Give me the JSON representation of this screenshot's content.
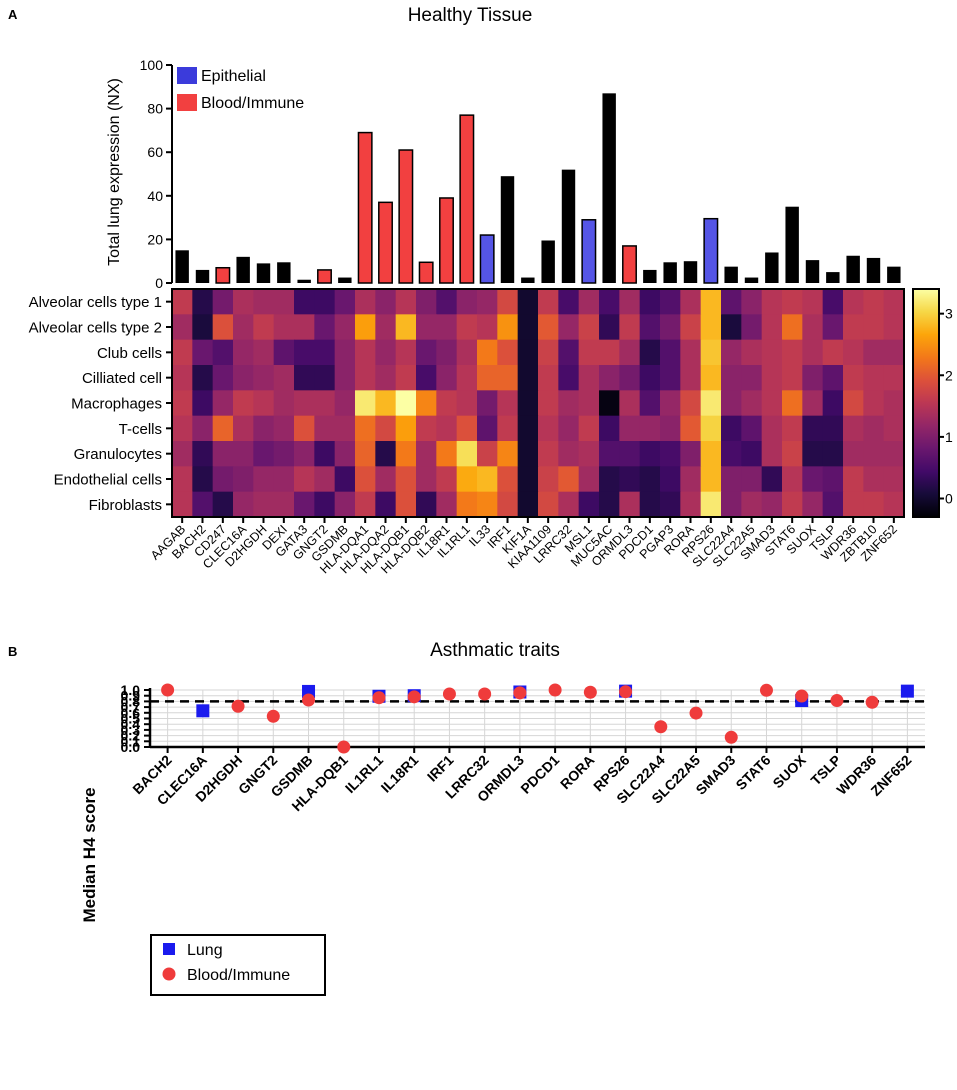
{
  "panel_a": {
    "letter": "A",
    "title": "Healthy Tissue",
    "ylabel": "Total lung expression (NX)",
    "legend": [
      {
        "label": "Epithelial",
        "color": "#3b3bdb"
      },
      {
        "label": "Blood/Immune",
        "color": "#f24040"
      }
    ],
    "colorbar_ticks": [
      "0",
      "1",
      "2",
      "3"
    ]
  },
  "panel_b": {
    "letter": "B",
    "title": "Asthmatic traits",
    "ylabel": "Median H4 score",
    "legend": [
      {
        "label": "Lung",
        "color": "#1a1aee"
      },
      {
        "label": "Blood/Immune",
        "color": "#ef3b3b"
      }
    ]
  },
  "chart_data": [
    {
      "type": "bar",
      "title": "Healthy Tissue",
      "ylabel": "Total lung expression (NX)",
      "ylim": [
        0,
        100
      ],
      "yticks": [
        0,
        20,
        40,
        60,
        80,
        100
      ],
      "categories": [
        "AAGAB",
        "BACH2",
        "CD247",
        "CLEC16A",
        "D2HGDH",
        "DEXI",
        "GATA3",
        "GNGT2",
        "GSDMB",
        "HLA-DQA1",
        "HLA-DQA2",
        "HLA-DQB1",
        "HLA-DQB2",
        "IL18R1",
        "IL1RL1",
        "IL33",
        "IRF1",
        "KIF1A",
        "KIAA1109",
        "LRRC32",
        "MSL1",
        "MUC5AC",
        "ORMDL3",
        "PDCD1",
        "PGAP3",
        "RORA",
        "RPS26",
        "SLC22A4",
        "SLC22A5",
        "SMAD3",
        "STAT6",
        "SUOX",
        "TSLP",
        "WDR36",
        "ZBTB10",
        "ZNF652"
      ],
      "values": [
        15,
        6,
        7,
        12,
        9,
        9.5,
        1.5,
        6,
        2.5,
        69,
        37,
        61,
        9.5,
        39,
        77,
        22,
        49,
        2.5,
        19.5,
        52,
        29,
        87,
        17,
        6,
        9.5,
        10,
        29.5,
        7.5,
        2.5,
        14,
        35,
        10.5,
        5,
        12.5,
        11.5,
        7.5
      ],
      "bar_group": [
        "other",
        "other",
        "blood",
        "other",
        "other",
        "other",
        "other",
        "blood",
        "other",
        "blood",
        "blood",
        "blood",
        "blood",
        "blood",
        "blood",
        "epithelial",
        "other",
        "other",
        "other",
        "other",
        "epithelial",
        "other",
        "blood",
        "other",
        "other",
        "other",
        "epithelial",
        "other",
        "other",
        "other",
        "other",
        "other",
        "other",
        "other",
        "other",
        "other"
      ],
      "group_colors": {
        "other": "#000000",
        "blood": "#f24040",
        "epithelial": "#5555e6"
      }
    },
    {
      "type": "heatmap",
      "rows": [
        "Alveolar cells type 1",
        "Alveolar cells type 2",
        "Club cells",
        "Cilliated cell",
        "Macrophages",
        "T-cells",
        "Granulocytes",
        "Endothelial cells",
        "Fibroblasts"
      ],
      "columns": [
        "AAGAB",
        "BACH2",
        "CD247",
        "CLEC16A",
        "D2HGDH",
        "DEXI",
        "GATA3",
        "GNGT2",
        "GSDMB",
        "HLA-DQA1",
        "HLA-DQA2",
        "HLA-DQB1",
        "HLA-DQB2",
        "IL18R1",
        "IL1RL1",
        "IL33",
        "IRF1",
        "KIF1A",
        "KIAA1109",
        "LRRC32",
        "MSL1",
        "MUC5AC",
        "ORMDL3",
        "PDCD1",
        "PGAP3",
        "RORA",
        "RPS26",
        "SLC22A4",
        "SLC22A5",
        "SMAD3",
        "STAT6",
        "SUOX",
        "TSLP",
        "WDR36",
        "ZBTB10",
        "ZNF652"
      ],
      "values": [
        [
          1.6,
          0.2,
          0.9,
          1.4,
          1.3,
          1.3,
          0.4,
          0.4,
          0.8,
          1.4,
          1.1,
          1.5,
          1.0,
          0.6,
          1.1,
          1.2,
          1.8,
          0.0,
          1.6,
          0.5,
          1.3,
          0.5,
          1.3,
          0.4,
          0.6,
          1.4,
          2.8,
          0.7,
          1.1,
          1.5,
          1.6,
          1.5,
          0.5,
          1.5,
          1.6,
          1.5
        ],
        [
          1.3,
          0.1,
          1.9,
          1.3,
          1.6,
          1.4,
          1.4,
          0.8,
          1.2,
          2.6,
          1.3,
          2.8,
          1.2,
          1.2,
          1.6,
          1.5,
          2.5,
          0.0,
          2.0,
          1.2,
          1.7,
          0.3,
          1.6,
          0.6,
          0.9,
          1.7,
          2.8,
          0.1,
          0.9,
          1.5,
          2.2,
          1.4,
          0.8,
          1.6,
          1.6,
          1.5
        ],
        [
          1.6,
          0.8,
          0.6,
          1.2,
          1.3,
          0.7,
          0.5,
          0.5,
          1.1,
          1.5,
          1.2,
          1.5,
          0.8,
          1.0,
          1.4,
          2.3,
          1.9,
          0.0,
          1.7,
          0.6,
          1.6,
          1.6,
          1.3,
          0.2,
          0.6,
          1.4,
          2.9,
          1.2,
          1.4,
          1.5,
          1.6,
          1.4,
          1.6,
          1.5,
          1.3,
          1.3
        ],
        [
          1.5,
          0.2,
          0.8,
          1.1,
          1.2,
          1.3,
          0.3,
          0.3,
          1.1,
          1.5,
          1.3,
          1.6,
          0.5,
          1.1,
          1.5,
          2.1,
          2.1,
          0.0,
          1.6,
          0.5,
          1.4,
          1.1,
          0.9,
          0.4,
          0.6,
          1.4,
          2.8,
          1.1,
          1.1,
          1.5,
          1.6,
          1.0,
          0.7,
          1.6,
          1.5,
          1.5
        ],
        [
          1.6,
          0.4,
          1.2,
          1.6,
          1.5,
          1.3,
          1.4,
          1.4,
          1.2,
          3.2,
          2.8,
          3.4,
          2.4,
          1.6,
          1.5,
          0.9,
          1.5,
          0.0,
          1.6,
          1.3,
          1.4,
          -0.2,
          1.4,
          0.6,
          1.2,
          1.8,
          3.2,
          1.1,
          1.3,
          1.5,
          2.2,
          1.3,
          0.4,
          1.8,
          1.5,
          1.4
        ],
        [
          1.5,
          1.1,
          2.1,
          1.4,
          1.1,
          1.2,
          1.9,
          1.3,
          1.3,
          2.2,
          1.8,
          2.6,
          1.6,
          1.5,
          1.9,
          0.7,
          1.6,
          0.0,
          1.5,
          1.2,
          1.6,
          0.4,
          1.2,
          1.2,
          1.1,
          2.0,
          3.0,
          0.4,
          0.7,
          1.4,
          1.6,
          0.3,
          0.3,
          1.4,
          1.3,
          1.4
        ],
        [
          1.3,
          0.3,
          1.1,
          1.1,
          0.8,
          0.9,
          1.1,
          0.4,
          1.1,
          2.1,
          0.2,
          2.3,
          1.3,
          2.3,
          3.1,
          1.7,
          2.4,
          0.0,
          1.6,
          1.3,
          1.4,
          0.6,
          0.6,
          0.4,
          0.5,
          1.0,
          2.8,
          0.5,
          0.4,
          1.4,
          1.7,
          0.2,
          0.2,
          1.3,
          1.3,
          1.3
        ],
        [
          1.5,
          0.2,
          0.9,
          1.0,
          1.2,
          1.2,
          1.5,
          1.3,
          0.4,
          1.9,
          1.3,
          1.9,
          1.3,
          1.6,
          2.7,
          2.8,
          1.9,
          0.0,
          1.7,
          2.0,
          1.3,
          0.2,
          0.3,
          0.2,
          0.4,
          1.3,
          2.8,
          1.0,
          1.0,
          0.3,
          1.5,
          0.8,
          0.7,
          1.6,
          1.4,
          1.4
        ],
        [
          1.5,
          0.6,
          0.2,
          1.2,
          1.3,
          1.3,
          0.8,
          0.4,
          1.1,
          1.6,
          0.4,
          1.9,
          0.3,
          1.3,
          2.3,
          2.4,
          1.8,
          0.0,
          1.8,
          1.4,
          0.4,
          0.2,
          1.4,
          0.2,
          0.3,
          1.4,
          3.2,
          1.0,
          1.3,
          1.2,
          1.6,
          1.2,
          0.6,
          1.6,
          1.6,
          1.5
        ]
      ],
      "colorbar_ticks": [
        0,
        1,
        2,
        3
      ],
      "vmin": -0.3,
      "vmax": 3.4
    },
    {
      "type": "scatter",
      "title": "Asthmatic traits",
      "ylabel": "Median H4 score",
      "ylim": [
        0.0,
        1.0
      ],
      "yticks": [
        0.0,
        0.1,
        0.2,
        0.3,
        0.4,
        0.5,
        0.6,
        0.7,
        0.8,
        0.9,
        1.0
      ],
      "threshold": 0.8,
      "categories": [
        "BACH2",
        "CLEC16A",
        "D2HGDH",
        "GNGT2",
        "GSDMB",
        "HLA-DQB1",
        "IL1RL1",
        "IL18R1",
        "IRF1",
        "LRRC32",
        "ORMDL3",
        "PDCD1",
        "RORA",
        "RPS26",
        "SLC22A4",
        "SLC22A5",
        "SMAD3",
        "STAT6",
        "SUOX",
        "TSLP",
        "WDR36",
        "ZNF652"
      ],
      "series": [
        {
          "name": "Lung",
          "marker": "square",
          "color": "#1a1aee",
          "values": [
            null,
            0.635,
            null,
            null,
            0.975,
            null,
            0.89,
            0.9,
            null,
            null,
            0.965,
            null,
            null,
            0.98,
            null,
            null,
            null,
            null,
            0.815,
            null,
            null,
            0.98
          ]
        },
        {
          "name": "Blood/Immune",
          "marker": "circle",
          "color": "#ef3b3b",
          "values": [
            1.0,
            null,
            0.715,
            0.54,
            0.825,
            0.0,
            0.865,
            0.88,
            0.93,
            0.93,
            0.95,
            1.0,
            0.96,
            0.97,
            0.355,
            0.595,
            0.17,
            0.995,
            0.895,
            0.815,
            0.785,
            null
          ]
        }
      ]
    }
  ]
}
